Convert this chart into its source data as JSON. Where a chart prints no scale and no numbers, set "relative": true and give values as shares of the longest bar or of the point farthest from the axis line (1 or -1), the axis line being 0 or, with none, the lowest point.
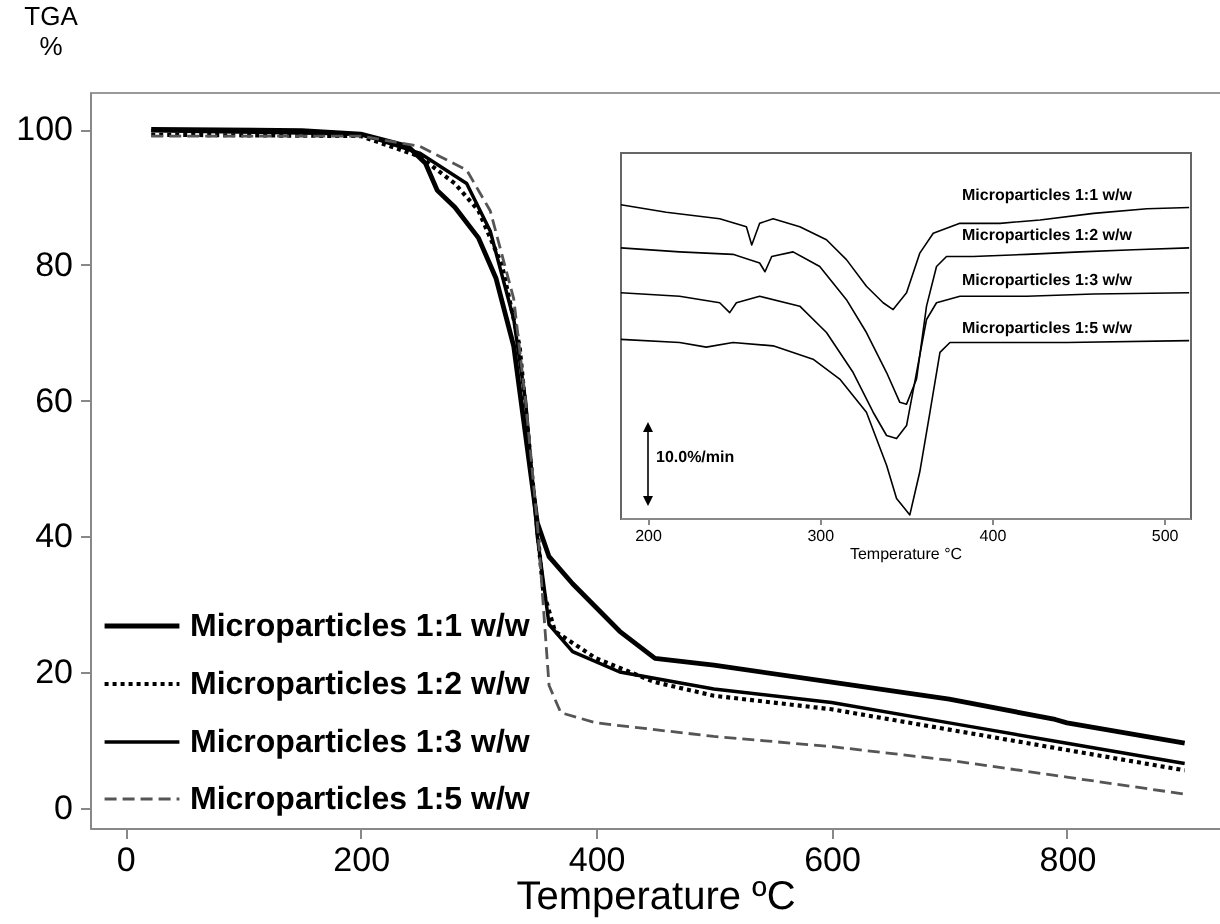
{
  "chart_data": [
    {
      "type": "line",
      "xlabel": "Temperature ºC",
      "ylabel": "TGA %",
      "xlim": [
        -30,
        930
      ],
      "ylim": [
        -3,
        105.5
      ],
      "xticks": [
        0,
        200,
        400,
        600,
        800
      ],
      "yticks": [
        0,
        20,
        40,
        60,
        80,
        100
      ],
      "legend": "bottom left",
      "series": [
        {
          "name": "Microparticles 1:1 w/w",
          "color": "#000000",
          "line_style": "solid",
          "x": [
            22,
            150,
            200,
            240,
            255,
            265,
            280,
            300,
            315,
            330,
            340,
            350,
            360,
            380,
            420,
            450,
            500,
            600,
            700,
            790,
            800,
            900
          ],
          "values": [
            100,
            99.8,
            99.3,
            97.5,
            95,
            91,
            88.5,
            84,
            78,
            68,
            55,
            42,
            37,
            33,
            26,
            22,
            21,
            18.5,
            16,
            13,
            12.5,
            9.5
          ]
        },
        {
          "name": "Microparticles 1:2 w/w",
          "color": "#000000",
          "line_style": "dotted",
          "x": [
            22,
            200,
            250,
            280,
            300,
            320,
            335,
            345,
            355,
            365,
            400,
            450,
            500,
            600,
            700,
            800,
            900
          ],
          "values": [
            99.2,
            99,
            96,
            92,
            88,
            80,
            68,
            50,
            32,
            26,
            22,
            18.5,
            16.5,
            14.5,
            11.5,
            8.5,
            5.5
          ]
        },
        {
          "name": "Microparticles 1:3 w/w",
          "color": "#000000",
          "line_style": "solid",
          "x": [
            22,
            200,
            250,
            290,
            310,
            330,
            340,
            350,
            360,
            380,
            420,
            500,
            600,
            700,
            800,
            900
          ],
          "values": [
            99.8,
            99.3,
            96.5,
            92,
            85,
            72,
            60,
            40,
            27,
            23,
            20,
            17.5,
            15.5,
            12.5,
            9.5,
            6.5
          ]
        },
        {
          "name": "Microparticles 1:5 w/w",
          "color": "#555555",
          "line_style": "dashed",
          "x": [
            22,
            200,
            250,
            290,
            310,
            330,
            340,
            350,
            360,
            370,
            400,
            500,
            600,
            700,
            800,
            900
          ],
          "values": [
            99,
            99,
            97.5,
            94,
            88,
            75,
            60,
            42,
            18,
            14,
            12.5,
            10.5,
            9,
            7,
            4.5,
            2
          ]
        }
      ]
    },
    {
      "type": "line",
      "xlabel": "Temperature °C",
      "xlim": [
        184,
        515
      ],
      "xticks": [
        200,
        300,
        400,
        500
      ],
      "relative": true,
      "annotations": [
        "10.0%/min"
      ],
      "series": [
        {
          "name": "Microparticles 1:1 w/w",
          "color": "#000000",
          "line_style": "solid",
          "x": [
            184.5,
            210.9,
            241.9,
            257.4,
            260.5,
            265.1,
            272.9,
            288.4,
            303.9,
            315.5,
            327.1,
            336.8,
            342.6,
            350.4,
            358.1,
            365.9,
            381.4,
            404.7,
            427.9,
            459.0,
            490.0,
            514.5
          ],
          "values": [
            1,
            0.976,
            0.955,
            0.929,
            0.87,
            0.94,
            0.955,
            0.929,
            0.887,
            0.823,
            0.737,
            0.684,
            0.662,
            0.716,
            0.844,
            0.908,
            0.94,
            0.94,
            0.951,
            0.972,
            0.987,
            0.991
          ]
        },
        {
          "name": "Microparticles 1:2 w/w",
          "color": "#000000",
          "line_style": "solid",
          "x": [
            184.5,
            218.6,
            249.6,
            265.1,
            268.2,
            272.1,
            284.5,
            300.0,
            315.5,
            327.1,
            338.8,
            346.5,
            350.4,
            356.2,
            362.0,
            367.8,
            373.6,
            389.1,
            420.2,
            451.2,
            482.2,
            514.5
          ],
          "values": [
            0.861,
            0.848,
            0.84,
            0.812,
            0.784,
            0.833,
            0.848,
            0.801,
            0.694,
            0.588,
            0.459,
            0.363,
            0.357,
            0.438,
            0.673,
            0.801,
            0.833,
            0.833,
            0.84,
            0.848,
            0.855,
            0.861
          ]
        },
        {
          "name": "Microparticles 1:3 w/w",
          "color": "#000000",
          "line_style": "solid",
          "x": [
            184.5,
            218.6,
            241.9,
            247.7,
            251.6,
            265.1,
            288.4,
            303.9,
            319.4,
            331.0,
            338.8,
            344.6,
            350.4,
            356.2,
            362.0,
            367.8,
            381.4,
            420.2,
            459.0,
            514.5
          ],
          "values": [
            0.716,
            0.705,
            0.684,
            0.652,
            0.684,
            0.705,
            0.673,
            0.588,
            0.459,
            0.331,
            0.256,
            0.246,
            0.288,
            0.459,
            0.63,
            0.684,
            0.705,
            0.705,
            0.712,
            0.716
          ]
        },
        {
          "name": "Microparticles 1:5 w/w",
          "color": "#000000",
          "line_style": "solid",
          "x": [
            184.5,
            218.6,
            234.1,
            249.6,
            272.9,
            296.1,
            311.6,
            327.1,
            338.8,
            344.6,
            352.3,
            358.1,
            364.0,
            369.8,
            375.6,
            404.7,
            443.4,
            514.5
          ],
          "values": [
            0.566,
            0.556,
            0.541,
            0.556,
            0.545,
            0.502,
            0.438,
            0.331,
            0.16,
            0.053,
            0,
            0.139,
            0.331,
            0.524,
            0.556,
            0.556,
            0.556,
            0.562
          ]
        }
      ]
    }
  ]
}
